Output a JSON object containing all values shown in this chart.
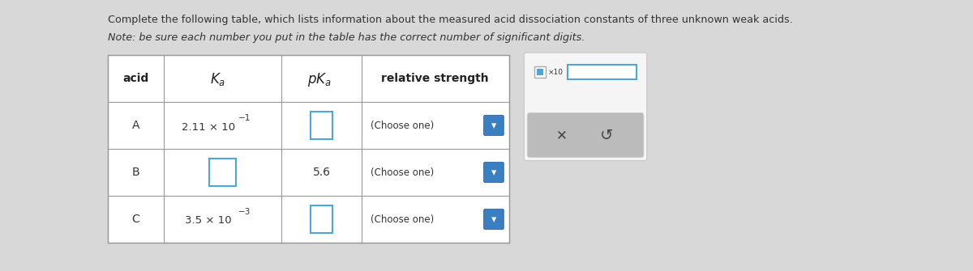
{
  "title_line1": "Complete the following table, which lists information about the measured acid dissociation constants of three unknown weak acids.",
  "title_line2": "Note: be sure each number you put in the table has the correct number of significant digits.",
  "bg_color": "#d8d8d8",
  "table_bg": "#ffffff",
  "rows": [
    {
      "acid": "A",
      "ka_text": "2.11 × 10",
      "ka_exp": "−1",
      "ka_empty": false,
      "pka_empty": true,
      "strength": "(Choose one)"
    },
    {
      "acid": "B",
      "ka_text": "",
      "ka_exp": "",
      "ka_empty": true,
      "pka": "5.6",
      "pka_empty": false,
      "strength": "(Choose one)"
    },
    {
      "acid": "C",
      "ka_text": "3.5 × 10",
      "ka_exp": "−3",
      "ka_empty": false,
      "pka_empty": true,
      "strength": "(Choose one)"
    }
  ],
  "side_panel_bg": "#f5f5f5",
  "side_panel_border": "#cccccc",
  "button_bg": "#bbbbbb",
  "input_border": "#4da6d4",
  "dropdown_bg": "#3a7fc1",
  "table_border": "#999999",
  "text_color": "#333333",
  "header_text_color": "#222222",
  "note_italic": true
}
